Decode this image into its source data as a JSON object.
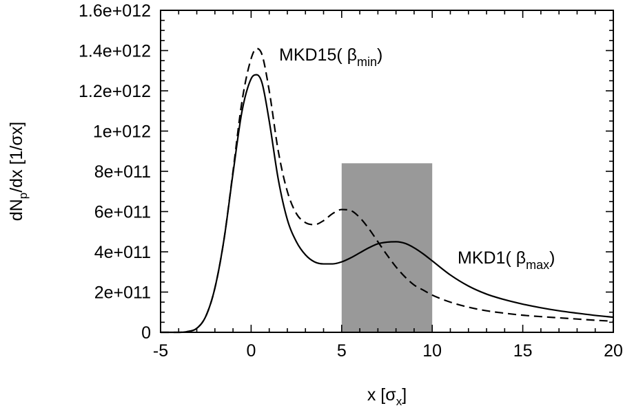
{
  "chart_data": {
    "type": "line",
    "xlabel": "x [σx]",
    "ylabel": "dNp/dx [1/σx]",
    "xlim": [
      -5,
      20
    ],
    "ylim": [
      0,
      1600000000000.0
    ],
    "grid": false,
    "x_ticks": [
      -5,
      0,
      5,
      10,
      15,
      20
    ],
    "x_tick_labels": [
      "-5",
      "0",
      "5",
      "10",
      "15",
      "20"
    ],
    "y_ticks": [
      0,
      200000000000.0,
      400000000000.0,
      600000000000.0,
      800000000000.0,
      1000000000000.0,
      1200000000000.0,
      1400000000000.0,
      1600000000000.0
    ],
    "y_tick_labels": [
      "0",
      "2e+011",
      "4e+011",
      "6e+011",
      "8e+011",
      "1e+012",
      "1.2e+012",
      "1.4e+012",
      "1.6e+012"
    ],
    "shaded_region": {
      "x": [
        5,
        10
      ],
      "y_top": 840000000000.0,
      "color": "#999999"
    },
    "series": [
      {
        "name": "MKD15( βmin)",
        "style": "dashed",
        "color": "#000000",
        "label": {
          "main": "MKD15( β",
          "sub": "min",
          "close": ")"
        },
        "x": [
          -5,
          -4,
          -3.5,
          -3,
          -2.5,
          -2,
          -1.5,
          -1,
          -0.5,
          0,
          0.3,
          0.6,
          1,
          1.5,
          2,
          2.5,
          3,
          3.5,
          4,
          4.5,
          5,
          5.5,
          6,
          6.5,
          7,
          7.5,
          8,
          8.5,
          9,
          9.5,
          10,
          11,
          12,
          13,
          14,
          15,
          16,
          17,
          18,
          19,
          20
        ],
        "y": [
          0,
          0,
          4000000000.0,
          20000000000.0,
          80000000000.0,
          220000000000.0,
          460000000000.0,
          800000000000.0,
          1150000000000.0,
          1360000000000.0,
          1410000000000.0,
          1380000000000.0,
          1200000000000.0,
          900000000000.0,
          700000000000.0,
          590000000000.0,
          545000000000.0,
          535000000000.0,
          555000000000.0,
          590000000000.0,
          610000000000.0,
          605000000000.0,
          570000000000.0,
          515000000000.0,
          450000000000.0,
          385000000000.0,
          325000000000.0,
          275000000000.0,
          235000000000.0,
          210000000000.0,
          185000000000.0,
          150000000000.0,
          125000000000.0,
          107000000000.0,
          95000000000.0,
          85000000000.0,
          78000000000.0,
          72000000000.0,
          66000000000.0,
          60000000000.0,
          55000000000.0
        ]
      },
      {
        "name": "MKD1( βmax )",
        "style": "solid",
        "color": "#000000",
        "label": {
          "main": "MKD1( β",
          "sub": "max",
          "close": ")"
        },
        "x": [
          -5,
          -4,
          -3.5,
          -3,
          -2.5,
          -2,
          -1.5,
          -1,
          -0.5,
          0,
          0.3,
          0.6,
          1,
          1.5,
          2,
          2.5,
          3,
          3.5,
          4,
          4.5,
          5,
          5.5,
          6,
          6.5,
          7,
          7.5,
          8,
          8.5,
          9,
          9.5,
          10,
          11,
          12,
          13,
          14,
          15,
          16,
          17,
          18,
          19,
          20
        ],
        "y": [
          0,
          0,
          4000000000.0,
          20000000000.0,
          80000000000.0,
          220000000000.0,
          460000000000.0,
          790000000000.0,
          1100000000000.0,
          1260000000000.0,
          1280000000000.0,
          1240000000000.0,
          1050000000000.0,
          760000000000.0,
          560000000000.0,
          450000000000.0,
          385000000000.0,
          350000000000.0,
          340000000000.0,
          340000000000.0,
          350000000000.0,
          370000000000.0,
          395000000000.0,
          420000000000.0,
          440000000000.0,
          448000000000.0,
          450000000000.0,
          442000000000.0,
          420000000000.0,
          390000000000.0,
          355000000000.0,
          285000000000.0,
          230000000000.0,
          190000000000.0,
          162000000000.0,
          140000000000.0,
          122000000000.0,
          107000000000.0,
          95000000000.0,
          84000000000.0,
          75000000000.0
        ]
      }
    ]
  }
}
